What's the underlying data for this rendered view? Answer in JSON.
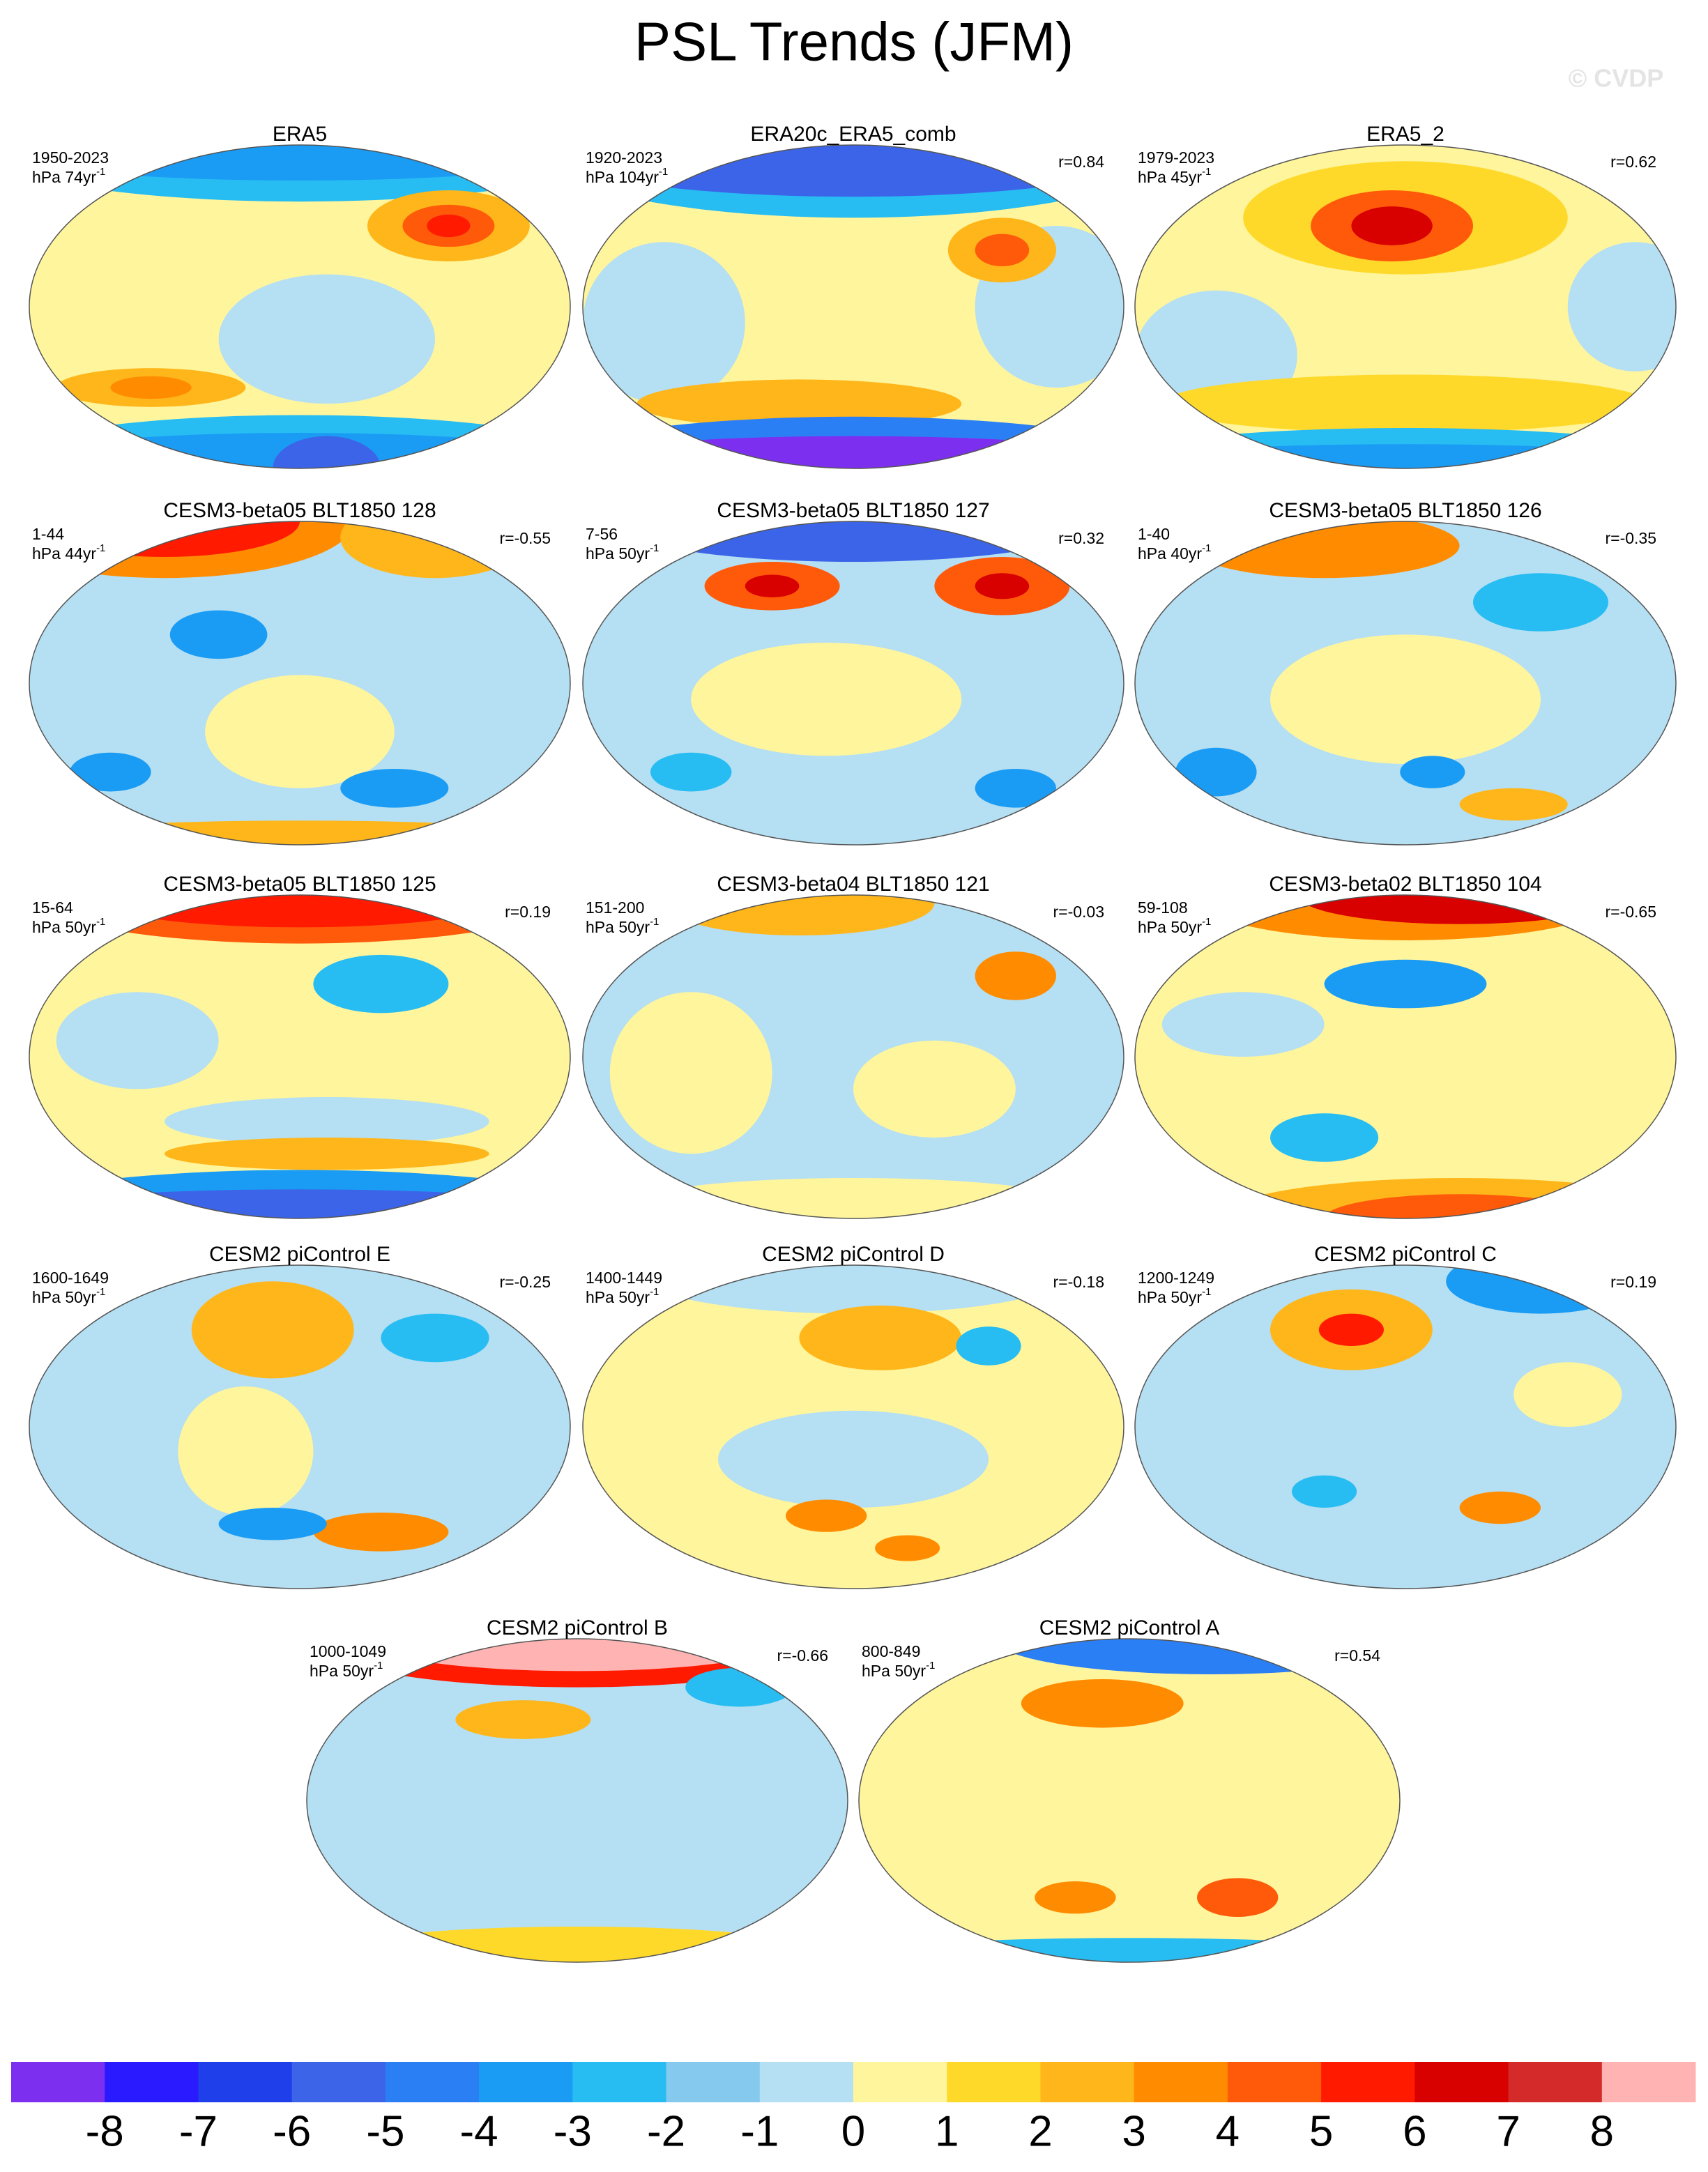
{
  "title": "PSL Trends (JFM)",
  "watermark": "© CVDP",
  "panels": [
    {
      "title": "ERA5",
      "period": "1950-2023",
      "units": "hPa 74yr",
      "exp": "-1"
    },
    {
      "title": "ERA20c_ERA5_comb",
      "period": "1920-2023",
      "units": "hPa 104yr",
      "exp": "-1",
      "r": "r=0.84"
    },
    {
      "title": "ERA5_2",
      "period": "1979-2023",
      "units": "hPa 45yr",
      "exp": "-1",
      "r": "r=0.62"
    },
    {
      "title": "CESM3-beta05 BLT1850 128",
      "period": "1-44",
      "units": "hPa 44yr",
      "exp": "-1",
      "r": "r=-0.55"
    },
    {
      "title": "CESM3-beta05 BLT1850 127",
      "period": "7-56",
      "units": "hPa 50yr",
      "exp": "-1",
      "r": "r=0.32"
    },
    {
      "title": "CESM3-beta05 BLT1850 126",
      "period": "1-40",
      "units": "hPa 40yr",
      "exp": "-1",
      "r": "r=-0.35"
    },
    {
      "title": "CESM3-beta05 BLT1850 125",
      "period": "15-64",
      "units": "hPa 50yr",
      "exp": "-1",
      "r": "r=0.19"
    },
    {
      "title": "CESM3-beta04 BLT1850 121",
      "period": "151-200",
      "units": "hPa 50yr",
      "exp": "-1",
      "r": "r=-0.03"
    },
    {
      "title": "CESM3-beta02 BLT1850 104",
      "period": "59-108",
      "units": "hPa 50yr",
      "exp": "-1",
      "r": "r=-0.65"
    },
    {
      "title": "CESM2 piControl E",
      "period": "1600-1649",
      "units": "hPa 50yr",
      "exp": "-1",
      "r": "r=-0.25"
    },
    {
      "title": "CESM2 piControl D",
      "period": "1400-1449",
      "units": "hPa 50yr",
      "exp": "-1",
      "r": "r=-0.18"
    },
    {
      "title": "CESM2 piControl C",
      "period": "1200-1249",
      "units": "hPa 50yr",
      "exp": "-1",
      "r": "r=0.19"
    },
    {
      "title": "CESM2 piControl B",
      "period": "1000-1049",
      "units": "hPa 50yr",
      "exp": "-1",
      "r": "r=-0.66"
    },
    {
      "title": "CESM2 piControl A",
      "period": "800-849",
      "units": "hPa 50yr",
      "exp": "-1",
      "r": "r=0.54"
    }
  ],
  "colorbar": {
    "colors": [
      "#7d2ff0",
      "#2a1aff",
      "#1e3fea",
      "#3c64e8",
      "#2b7ff5",
      "#1a9cf5",
      "#27bdf2",
      "#85c9ef",
      "#b5dff2",
      "#fff59d",
      "#ffd92a",
      "#ffb61a",
      "#ff8c00",
      "#ff5a0a",
      "#ff1a00",
      "#d90000",
      "#d42a2a",
      "#ffb3b3"
    ],
    "levels": [
      -8,
      -7,
      -6,
      -5,
      -4,
      -3,
      -2,
      -1,
      0,
      1,
      2,
      3,
      4,
      5,
      6,
      7,
      8
    ]
  }
}
